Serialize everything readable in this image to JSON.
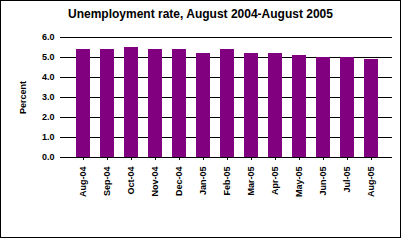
{
  "chart_data": {
    "type": "bar",
    "title": "Unemployment rate, August 2004-August 2005",
    "y_label": "Percent",
    "categories": [
      "Aug-04",
      "Sep-04",
      "Oct-04",
      "Nov-04",
      "Dec-04",
      "Jan-05",
      "Feb-05",
      "Mar-05",
      "Apr-05",
      "May-05",
      "Jun-05",
      "Jul-05",
      "Aug-05"
    ],
    "values": [
      5.4,
      5.4,
      5.5,
      5.4,
      5.4,
      5.2,
      5.4,
      5.2,
      5.2,
      5.1,
      5.0,
      5.0,
      4.9
    ],
    "color": "#800080",
    "ylim": [
      0,
      6
    ],
    "yticks": [
      {
        "value": 0,
        "label": "0.0"
      },
      {
        "value": 1,
        "label": "1.0"
      },
      {
        "value": 2,
        "label": "2.0"
      },
      {
        "value": 3,
        "label": "3.0"
      },
      {
        "value": 4,
        "label": "4.0"
      },
      {
        "value": 5,
        "label": "5.0"
      },
      {
        "value": 6,
        "label": "6.0"
      }
    ],
    "grid": true
  }
}
